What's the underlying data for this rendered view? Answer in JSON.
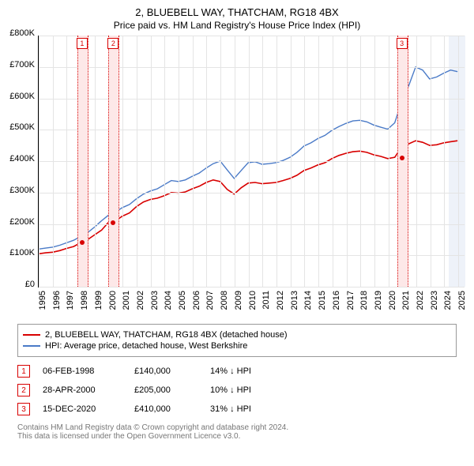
{
  "title": "2, BLUEBELL WAY, THATCHAM, RG18 4BX",
  "subtitle": "Price paid vs. HM Land Registry's House Price Index (HPI)",
  "chart": {
    "type": "line",
    "background_color": "#ffffff",
    "grid_color": "#e4e4e4",
    "axis_color": "#000000",
    "xlim": [
      1995,
      2025.5
    ],
    "ylim": [
      0,
      800000
    ],
    "y_ticks": [
      0,
      100000,
      200000,
      300000,
      400000,
      500000,
      600000,
      700000,
      800000
    ],
    "y_tick_labels": [
      "£0",
      "£100K",
      "£200K",
      "£300K",
      "£400K",
      "£500K",
      "£600K",
      "£700K",
      "£800K"
    ],
    "x_ticks": [
      1995,
      1996,
      1997,
      1998,
      1999,
      2000,
      2001,
      2002,
      2003,
      2004,
      2005,
      2006,
      2007,
      2008,
      2009,
      2010,
      2011,
      2012,
      2013,
      2014,
      2015,
      2016,
      2017,
      2018,
      2019,
      2020,
      2021,
      2022,
      2023,
      2024,
      2025
    ],
    "vertical_shade_band": {
      "from": 2024.3,
      "to": 2025.5,
      "color": "#eef2f9"
    },
    "series": [
      {
        "name": "price_paid",
        "legend": "2, BLUEBELL WAY, THATCHAM, RG18 4BX (detached house)",
        "color": "#d80000",
        "line_width": 1.6,
        "x": [
          1995,
          1995.5,
          1996,
          1996.5,
          1997,
          1997.5,
          1998,
          1998.5,
          1999,
          1999.5,
          2000,
          2000.5,
          2001,
          2001.5,
          2002,
          2002.5,
          2003,
          2003.5,
          2004,
          2004.5,
          2005,
          2005.5,
          2006,
          2006.5,
          2007,
          2007.5,
          2008,
          2008.5,
          2009,
          2009.5,
          2010,
          2010.5,
          2011,
          2011.5,
          2012,
          2012.5,
          2013,
          2013.5,
          2014,
          2014.5,
          2015,
          2015.5,
          2016,
          2016.5,
          2017,
          2017.5,
          2018,
          2018.5,
          2019,
          2019.5,
          2020,
          2020.5,
          2021,
          2021.5,
          2022,
          2022.5,
          2023,
          2023.5,
          2024,
          2024.5,
          2025
        ],
        "y": [
          105000,
          108000,
          110000,
          115000,
          122000,
          128000,
          140000,
          150000,
          165000,
          180000,
          205000,
          210000,
          225000,
          235000,
          255000,
          270000,
          278000,
          282000,
          290000,
          300000,
          298000,
          302000,
          312000,
          320000,
          332000,
          340000,
          335000,
          310000,
          295000,
          315000,
          330000,
          332000,
          328000,
          330000,
          332000,
          338000,
          345000,
          355000,
          370000,
          378000,
          388000,
          395000,
          408000,
          418000,
          425000,
          430000,
          432000,
          428000,
          420000,
          415000,
          408000,
          412000,
          445000,
          455000,
          465000,
          460000,
          450000,
          452000,
          458000,
          462000,
          465000
        ]
      },
      {
        "name": "hpi",
        "legend": "HPI: Average price, detached house, West Berkshire",
        "color": "#4a7ac7",
        "line_width": 1.4,
        "x": [
          1995,
          1995.5,
          1996,
          1996.5,
          1997,
          1997.5,
          1998,
          1998.5,
          1999,
          1999.5,
          2000,
          2000.5,
          2001,
          2001.5,
          2002,
          2002.5,
          2003,
          2003.5,
          2004,
          2004.5,
          2005,
          2005.5,
          2006,
          2006.5,
          2007,
          2007.5,
          2008,
          2008.5,
          2009,
          2009.5,
          2010,
          2010.5,
          2011,
          2011.5,
          2012,
          2012.5,
          2013,
          2013.5,
          2014,
          2014.5,
          2015,
          2015.5,
          2016,
          2016.5,
          2017,
          2017.5,
          2018,
          2018.5,
          2019,
          2019.5,
          2020,
          2020.5,
          2021,
          2021.5,
          2022,
          2022.5,
          2023,
          2023.5,
          2024,
          2024.5,
          2025
        ],
        "y": [
          120000,
          123000,
          126000,
          132000,
          140000,
          148000,
          160000,
          172000,
          190000,
          210000,
          228000,
          238000,
          252000,
          262000,
          280000,
          295000,
          305000,
          312000,
          325000,
          338000,
          335000,
          340000,
          352000,
          362000,
          378000,
          392000,
          400000,
          372000,
          345000,
          370000,
          395000,
          398000,
          390000,
          392000,
          395000,
          402000,
          412000,
          428000,
          448000,
          458000,
          472000,
          482000,
          498000,
          510000,
          520000,
          528000,
          530000,
          525000,
          515000,
          508000,
          502000,
          522000,
          590000,
          640000,
          700000,
          690000,
          662000,
          668000,
          680000,
          690000,
          685000
        ]
      }
    ],
    "markers": [
      {
        "id": "1",
        "date": 1998.1,
        "price": 140000,
        "color": "#d80000",
        "band_color": "#fde8e8"
      },
      {
        "id": "2",
        "date": 2000.33,
        "price": 205000,
        "color": "#d80000",
        "band_color": "#fde8e8"
      },
      {
        "id": "3",
        "date": 2020.96,
        "price": 410000,
        "color": "#d80000",
        "band_color": "#fde8e8"
      }
    ]
  },
  "legend_items": [
    {
      "color": "#d80000",
      "label": "2, BLUEBELL WAY, THATCHAM, RG18 4BX (detached house)"
    },
    {
      "color": "#4a7ac7",
      "label": "HPI: Average price, detached house, West Berkshire"
    }
  ],
  "transactions": [
    {
      "id": "1",
      "date": "06-FEB-1998",
      "price": "£140,000",
      "delta": "14% ↓ HPI",
      "color": "#d80000"
    },
    {
      "id": "2",
      "date": "28-APR-2000",
      "price": "£205,000",
      "delta": "10% ↓ HPI",
      "color": "#d80000"
    },
    {
      "id": "3",
      "date": "15-DEC-2020",
      "price": "£410,000",
      "delta": "31% ↓ HPI",
      "color": "#d80000"
    }
  ],
  "attribution": {
    "line1": "Contains HM Land Registry data © Crown copyright and database right 2024.",
    "line2": "This data is licensed under the Open Government Licence v3.0."
  }
}
